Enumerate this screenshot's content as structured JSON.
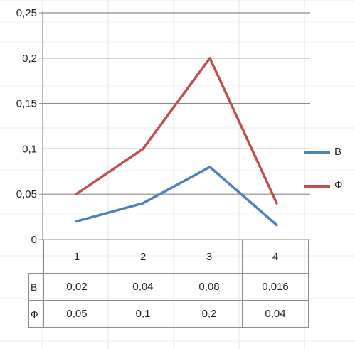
{
  "chart_data": {
    "type": "line",
    "categories": [
      "1",
      "2",
      "3",
      "4"
    ],
    "series": [
      {
        "name": "В",
        "values": [
          0.02,
          0.04,
          0.08,
          0.016
        ],
        "color": "#4f81bd"
      },
      {
        "name": "Ф",
        "values": [
          0.05,
          0.1,
          0.2,
          0.04
        ],
        "color": "#c0504d"
      }
    ],
    "ylim": [
      0,
      0.25
    ],
    "yticks": [
      0,
      0.05,
      0.1,
      0.15,
      0.2,
      0.25
    ],
    "ytick_labels": [
      "0",
      "0,05",
      "0,1",
      "0,15",
      "0,2",
      "0,25"
    ],
    "table_values": {
      "В": [
        "0,02",
        "0,04",
        "0,08",
        "0,016"
      ],
      "Ф": [
        "0,05",
        "0,1",
        "0,2",
        "0,04"
      ]
    },
    "grid": true,
    "legend": "right",
    "data_table": true
  }
}
